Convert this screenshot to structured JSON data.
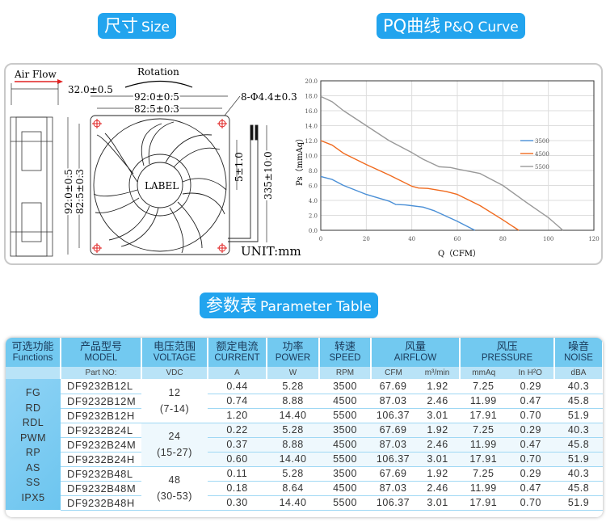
{
  "headers": {
    "size": {
      "zh": "尺寸",
      "en": "Size"
    },
    "pq": {
      "zh": "PQ曲线",
      "en": "P&Q Curve"
    },
    "params": {
      "zh": "参数表",
      "en": "Parameter Table"
    }
  },
  "drawing": {
    "air_flow": "Air Flow",
    "rotation": "Rotation",
    "depth": "32.0±0.5",
    "width_outer": "92.0±0.5",
    "width_hole": "82.5±0.3",
    "height_outer": "92.0±0.5",
    "height_hole": "82.5±0.3",
    "holes": "8-Φ4.4±0.3",
    "strip": "5±1.0",
    "lead": "335±10.0",
    "label": "LABEL",
    "unit": "UNIT:mm",
    "colors": {
      "airflow_arrow": "#e02020",
      "hole_mark": "#e02020"
    }
  },
  "chart_data": {
    "type": "line",
    "xlabel": "Q（CFM）",
    "ylabel": "Ps（mmAq）",
    "xlim": [
      0,
      120
    ],
    "ylim": [
      0,
      20
    ],
    "xticks": [
      "0",
      "20",
      "40",
      "60",
      "80",
      "100",
      "120"
    ],
    "yticks": [
      "0.0",
      "2.0",
      "4.0",
      "6.0",
      "8.0",
      "10.0",
      "12.0",
      "14.0",
      "16.0",
      "18.0",
      "20.0"
    ],
    "grid": true,
    "legend_position": "right",
    "series": [
      {
        "name": "3500",
        "color": "#4a8fd6",
        "points": [
          [
            0,
            7.2
          ],
          [
            5,
            6.8
          ],
          [
            10,
            6.0
          ],
          [
            20,
            4.8
          ],
          [
            30,
            3.9
          ],
          [
            33,
            3.45
          ],
          [
            37,
            3.4
          ],
          [
            45,
            3.1
          ],
          [
            50,
            2.6
          ],
          [
            60,
            1.2
          ],
          [
            67.7,
            0
          ]
        ]
      },
      {
        "name": "4500",
        "color": "#f06a1e",
        "points": [
          [
            0,
            12
          ],
          [
            5,
            11.4
          ],
          [
            10,
            10.3
          ],
          [
            20,
            8.8
          ],
          [
            30,
            7.4
          ],
          [
            40,
            5.9
          ],
          [
            43,
            5.65
          ],
          [
            47,
            5.6
          ],
          [
            55,
            5.2
          ],
          [
            60,
            4.8
          ],
          [
            70,
            3.3
          ],
          [
            80,
            1.4
          ],
          [
            87,
            0
          ]
        ]
      },
      {
        "name": "5500",
        "color": "#999999",
        "points": [
          [
            0,
            17.9
          ],
          [
            5,
            17.2
          ],
          [
            10,
            16
          ],
          [
            20,
            14
          ],
          [
            30,
            12
          ],
          [
            40,
            10.4
          ],
          [
            45,
            9.5
          ],
          [
            52,
            8.5
          ],
          [
            57,
            8.4
          ],
          [
            60,
            8.2
          ],
          [
            70,
            7.6
          ],
          [
            80,
            6
          ],
          [
            90,
            3.8
          ],
          [
            100,
            1.7
          ],
          [
            106.4,
            0
          ]
        ]
      }
    ]
  },
  "table": {
    "columns": [
      {
        "zh": "可选功能",
        "en": "Functions",
        "unit": ""
      },
      {
        "zh": "产品型号",
        "en": "MODEL",
        "unit": "Part NO:"
      },
      {
        "zh": "电压范围",
        "en": "VOLTAGE",
        "unit": "VDC"
      },
      {
        "zh": "额定电流",
        "en": "CURRENT",
        "unit": "A"
      },
      {
        "zh": "功率",
        "en": "POWER",
        "unit": "W"
      },
      {
        "zh": "转速",
        "en": "SPEED",
        "unit": "RPM"
      },
      {
        "zh": "风量",
        "en": "AIRFLOW",
        "unit": "CFM",
        "unit2": "m³/min"
      },
      {
        "zh": "风压",
        "en": "PRESSURE",
        "unit": "mmAq",
        "unit2": "In H²O"
      },
      {
        "zh": "噪音",
        "en": "NOISE",
        "unit": "dBA"
      }
    ],
    "functions": [
      "FG",
      "RD",
      "RDL",
      "PWM",
      "RP",
      "AS",
      "SS",
      "IPX5"
    ],
    "voltage_groups": [
      {
        "nominal": "12",
        "range": "(7-14)"
      },
      {
        "nominal": "24",
        "range": "(15-27)"
      },
      {
        "nominal": "48",
        "range": "(30-53)"
      }
    ],
    "rows": [
      [
        "DF9232B12L",
        "0.44",
        "5.28",
        "3500",
        "67.69",
        "1.92",
        "7.25",
        "0.29",
        "40.3"
      ],
      [
        "DF9232B12M",
        "0.74",
        "8.88",
        "4500",
        "87.03",
        "2.46",
        "11.99",
        "0.47",
        "45.8"
      ],
      [
        "DF9232B12H",
        "1.20",
        "14.40",
        "5500",
        "106.37",
        "3.01",
        "17.91",
        "0.70",
        "51.9"
      ],
      [
        "DF9232B24L",
        "0.22",
        "5.28",
        "3500",
        "67.69",
        "1.92",
        "7.25",
        "0.29",
        "40.3"
      ],
      [
        "DF9232B24M",
        "0.37",
        "8.88",
        "4500",
        "87.03",
        "2.46",
        "11.99",
        "0.47",
        "45.8"
      ],
      [
        "DF9232B24H",
        "0.60",
        "14.40",
        "5500",
        "106.37",
        "3.01",
        "17.91",
        "0.70",
        "51.9"
      ],
      [
        "DF9232B48L",
        "0.11",
        "5.28",
        "3500",
        "67.69",
        "1.92",
        "7.25",
        "0.29",
        "40.3"
      ],
      [
        "DF9232B48M",
        "0.18",
        "8.64",
        "4500",
        "87.03",
        "2.46",
        "11.99",
        "0.47",
        "45.8"
      ],
      [
        "DF9232B48H",
        "0.30",
        "14.40",
        "5500",
        "106.37",
        "3.01",
        "17.91",
        "0.70",
        "51.9"
      ]
    ]
  }
}
